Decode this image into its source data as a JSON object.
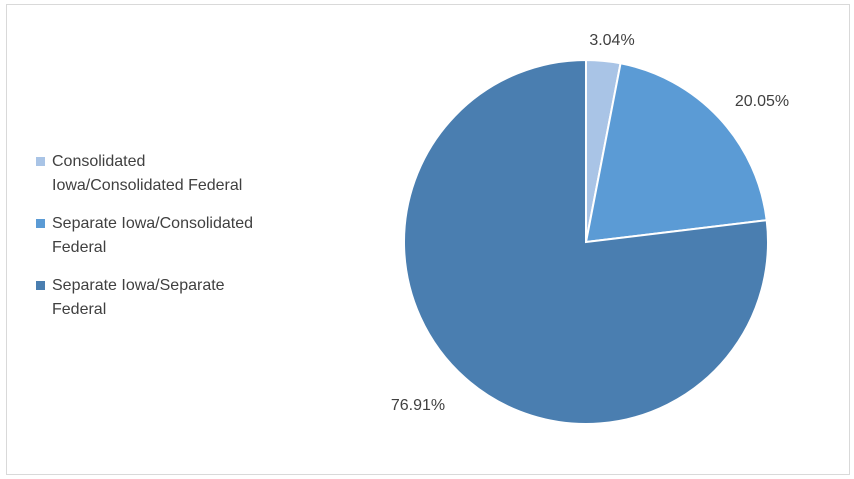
{
  "chart_data": {
    "type": "pie",
    "slices": [
      {
        "name": "Consolidated\nIowa/Consolidated Federal",
        "value": 3.04,
        "label": "3.04%",
        "color": "#a9c4e6"
      },
      {
        "name": "Separate Iowa/Consolidated\nFederal",
        "value": 20.05,
        "label": "20.05%",
        "color": "#5b9bd5"
      },
      {
        "name": "Separate Iowa/Separate\nFederal",
        "value": 76.91,
        "label": "76.91%",
        "color": "#4a7eb0"
      }
    ],
    "start_angle": "12 o'clock",
    "direction": "clockwise",
    "legend_position": "left"
  }
}
